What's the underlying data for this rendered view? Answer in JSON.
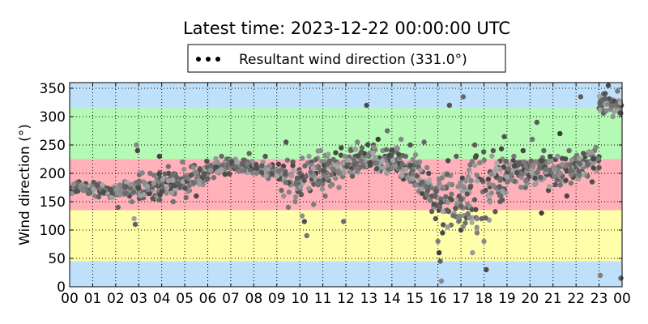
{
  "chart_data": {
    "type": "scatter",
    "title": "Latest time: 2023-12-22 00:00:00 UTC",
    "xlabel": "",
    "ylabel": "Wind direction (°)",
    "xlim": [
      0,
      24
    ],
    "ylim": [
      0,
      360
    ],
    "grid": true,
    "legend_placement": "top-center",
    "x_tick_labels": [
      "00",
      "01",
      "02",
      "03",
      "04",
      "05",
      "06",
      "07",
      "08",
      "09",
      "10",
      "11",
      "12",
      "13",
      "14",
      "15",
      "16",
      "17",
      "18",
      "19",
      "20",
      "21",
      "22",
      "23",
      "00"
    ],
    "y_ticks": [
      0,
      50,
      100,
      150,
      200,
      250,
      300,
      350
    ],
    "bands": [
      {
        "from": 0,
        "to": 45,
        "color": "#bfe0fa"
      },
      {
        "from": 45,
        "to": 135,
        "color": "#ffffaa"
      },
      {
        "from": 135,
        "to": 225,
        "color": "#ffb0b8"
      },
      {
        "from": 225,
        "to": 315,
        "color": "#b4fab4"
      },
      {
        "from": 315,
        "to": 360,
        "color": "#bfe0fa"
      }
    ],
    "series": [
      {
        "name": "Resultant wind direction (331.0°)",
        "marker_color": "#5a5a5a",
        "trend_hourly": [
          {
            "hour": 0,
            "dir": 175,
            "spread": 10
          },
          {
            "hour": 1,
            "dir": 172,
            "spread": 12
          },
          {
            "hour": 2,
            "dir": 168,
            "spread": 15
          },
          {
            "hour": 3,
            "dir": 175,
            "spread": 25
          },
          {
            "hour": 4,
            "dir": 180,
            "spread": 25
          },
          {
            "hour": 5,
            "dir": 185,
            "spread": 25
          },
          {
            "hour": 6,
            "dir": 205,
            "spread": 15
          },
          {
            "hour": 7,
            "dir": 215,
            "spread": 12
          },
          {
            "hour": 8,
            "dir": 212,
            "spread": 12
          },
          {
            "hour": 9,
            "dir": 200,
            "spread": 25
          },
          {
            "hour": 10,
            "dir": 185,
            "spread": 40
          },
          {
            "hour": 11,
            "dir": 200,
            "spread": 30
          },
          {
            "hour": 12,
            "dir": 215,
            "spread": 25
          },
          {
            "hour": 13,
            "dir": 225,
            "spread": 25
          },
          {
            "hour": 14,
            "dir": 225,
            "spread": 25
          },
          {
            "hour": 15,
            "dir": 200,
            "spread": 30
          },
          {
            "hour": 16,
            "dir": 150,
            "spread": 60
          },
          {
            "hour": 17,
            "dir": 160,
            "spread": 60
          },
          {
            "hour": 18,
            "dir": 170,
            "spread": 55
          },
          {
            "hour": 19,
            "dir": 205,
            "spread": 25
          },
          {
            "hour": 20,
            "dir": 205,
            "spread": 30
          },
          {
            "hour": 21,
            "dir": 205,
            "spread": 30
          },
          {
            "hour": 22,
            "dir": 210,
            "spread": 25
          },
          {
            "hour": 23,
            "dir": 320,
            "spread": 20
          }
        ],
        "points": [
          [
            0.1,
            172
          ],
          [
            0.2,
            180
          ],
          [
            0.3,
            168
          ],
          [
            0.4,
            185
          ],
          [
            0.5,
            176
          ],
          [
            0.6,
            170
          ],
          [
            0.7,
            182
          ],
          [
            0.8,
            165
          ],
          [
            0.9,
            178
          ],
          [
            1.0,
            174
          ],
          [
            1.1,
            160
          ],
          [
            1.2,
            180
          ],
          [
            1.3,
            170
          ],
          [
            1.4,
            168
          ],
          [
            1.5,
            176
          ],
          [
            1.6,
            165
          ],
          [
            1.7,
            172
          ],
          [
            1.8,
            158
          ],
          [
            1.9,
            175
          ],
          [
            2.0,
            170
          ],
          [
            2.1,
            140
          ],
          [
            2.2,
            178
          ],
          [
            2.3,
            165
          ],
          [
            2.4,
            185
          ],
          [
            2.5,
            172
          ],
          [
            2.6,
            160
          ],
          [
            2.7,
            150
          ],
          [
            2.8,
            120
          ],
          [
            2.85,
            110
          ],
          [
            2.9,
            250
          ],
          [
            2.95,
            240
          ],
          [
            3.0,
            175
          ],
          [
            3.2,
            185
          ],
          [
            3.4,
            165
          ],
          [
            3.5,
            200
          ],
          [
            3.6,
            170
          ],
          [
            3.7,
            155
          ],
          [
            3.8,
            190
          ],
          [
            3.9,
            230
          ],
          [
            4.0,
            180
          ],
          [
            4.2,
            165
          ],
          [
            4.3,
            200
          ],
          [
            4.5,
            150
          ],
          [
            4.6,
            195
          ],
          [
            4.8,
            175
          ],
          [
            4.9,
            220
          ],
          [
            5.0,
            185
          ],
          [
            5.2,
            170
          ],
          [
            5.4,
            200
          ],
          [
            5.5,
            160
          ],
          [
            5.6,
            195
          ],
          [
            5.8,
            180
          ],
          [
            5.9,
            210
          ],
          [
            6.0,
            200
          ],
          [
            6.1,
            215
          ],
          [
            6.2,
            205
          ],
          [
            6.4,
            220
          ],
          [
            6.5,
            210
          ],
          [
            6.6,
            230
          ],
          [
            6.8,
            215
          ],
          [
            6.9,
            200
          ],
          [
            7.0,
            215
          ],
          [
            7.2,
            225
          ],
          [
            7.4,
            205
          ],
          [
            7.5,
            218
          ],
          [
            7.6,
            210
          ],
          [
            7.8,
            235
          ],
          [
            7.9,
            220
          ],
          [
            8.0,
            212
          ],
          [
            8.2,
            205
          ],
          [
            8.4,
            220
          ],
          [
            8.5,
            230
          ],
          [
            8.6,
            208
          ],
          [
            8.8,
            215
          ],
          [
            8.9,
            200
          ],
          [
            9.0,
            205
          ],
          [
            9.1,
            190
          ],
          [
            9.2,
            170
          ],
          [
            9.3,
            160
          ],
          [
            9.4,
            255
          ],
          [
            9.5,
            140
          ],
          [
            9.6,
            185
          ],
          [
            9.7,
            220
          ],
          [
            9.8,
            150
          ],
          [
            9.9,
            180
          ],
          [
            10.0,
            170
          ],
          [
            10.1,
            125
          ],
          [
            10.2,
            115
          ],
          [
            10.3,
            90
          ],
          [
            10.4,
            230
          ],
          [
            10.5,
            210
          ],
          [
            10.6,
            145
          ],
          [
            10.7,
            200
          ],
          [
            10.8,
            180
          ],
          [
            10.9,
            240
          ],
          [
            11.0,
            205
          ],
          [
            11.1,
            160
          ],
          [
            11.2,
            230
          ],
          [
            11.3,
            215
          ],
          [
            11.4,
            180
          ],
          [
            11.5,
            200
          ],
          [
            11.6,
            220
          ],
          [
            11.7,
            175
          ],
          [
            11.8,
            245
          ],
          [
            11.9,
            115
          ],
          [
            12.0,
            215
          ],
          [
            12.1,
            225
          ],
          [
            12.2,
            240
          ],
          [
            12.3,
            200
          ],
          [
            12.4,
            230
          ],
          [
            12.5,
            255
          ],
          [
            12.6,
            210
          ],
          [
            12.7,
            245
          ],
          [
            12.8,
            220
          ],
          [
            12.9,
            320
          ],
          [
            13.0,
            230
          ],
          [
            13.1,
            215
          ],
          [
            13.2,
            250
          ],
          [
            13.3,
            225
          ],
          [
            13.4,
            260
          ],
          [
            13.5,
            205
          ],
          [
            13.6,
            240
          ],
          [
            13.7,
            230
          ],
          [
            13.8,
            275
          ],
          [
            13.9,
            215
          ],
          [
            14.0,
            235
          ],
          [
            14.1,
            220
          ],
          [
            14.2,
            245
          ],
          [
            14.3,
            210
          ],
          [
            14.4,
            260
          ],
          [
            14.5,
            190
          ],
          [
            14.6,
            230
          ],
          [
            14.7,
            215
          ],
          [
            14.8,
            250
          ],
          [
            14.9,
            205
          ],
          [
            15.0,
            210
          ],
          [
            15.1,
            195
          ],
          [
            15.2,
            220
          ],
          [
            15.3,
            180
          ],
          [
            15.4,
            255
          ],
          [
            15.5,
            165
          ],
          [
            15.6,
            200
          ],
          [
            15.7,
            175
          ],
          [
            15.8,
            140
          ],
          [
            15.9,
            120
          ],
          [
            16.0,
            80
          ],
          [
            16.05,
            60
          ],
          [
            16.1,
            45
          ],
          [
            16.15,
            10
          ],
          [
            16.2,
            95
          ],
          [
            16.3,
            150
          ],
          [
            16.4,
            200
          ],
          [
            16.5,
            320
          ],
          [
            16.6,
            180
          ],
          [
            16.7,
            130
          ],
          [
            16.8,
            230
          ],
          [
            16.9,
            115
          ],
          [
            17.0,
            100
          ],
          [
            17.1,
            335
          ],
          [
            17.2,
            170
          ],
          [
            17.3,
            140
          ],
          [
            17.4,
            215
          ],
          [
            17.5,
            60
          ],
          [
            17.6,
            250
          ],
          [
            17.7,
            95
          ],
          [
            17.8,
            190
          ],
          [
            17.9,
            120
          ],
          [
            18.0,
            80
          ],
          [
            18.1,
            30
          ],
          [
            18.2,
            160
          ],
          [
            18.3,
            200
          ],
          [
            18.4,
            240
          ],
          [
            18.5,
            175
          ],
          [
            18.6,
            210
          ],
          [
            18.7,
            150
          ],
          [
            18.8,
            225
          ],
          [
            18.9,
            190
          ],
          [
            19.0,
            205
          ],
          [
            19.1,
            215
          ],
          [
            19.2,
            195
          ],
          [
            19.3,
            230
          ],
          [
            19.4,
            185
          ],
          [
            19.5,
            215
          ],
          [
            19.6,
            200
          ],
          [
            19.7,
            240
          ],
          [
            19.8,
            175
          ],
          [
            19.9,
            210
          ],
          [
            20.0,
            195
          ],
          [
            20.1,
            260
          ],
          [
            20.2,
            180
          ],
          [
            20.3,
            290
          ],
          [
            20.4,
            215
          ],
          [
            20.5,
            130
          ],
          [
            20.6,
            240
          ],
          [
            20.7,
            200
          ],
          [
            20.8,
            170
          ],
          [
            20.9,
            225
          ],
          [
            21.0,
            210
          ],
          [
            21.1,
            180
          ],
          [
            21.2,
            230
          ],
          [
            21.3,
            270
          ],
          [
            21.4,
            195
          ],
          [
            21.5,
            215
          ],
          [
            21.6,
            160
          ],
          [
            21.7,
            240
          ],
          [
            21.8,
            205
          ],
          [
            21.9,
            225
          ],
          [
            22.0,
            215
          ],
          [
            22.1,
            190
          ],
          [
            22.2,
            335
          ],
          [
            22.3,
            210
          ],
          [
            22.4,
            230
          ],
          [
            22.5,
            195
          ],
          [
            22.6,
            220
          ],
          [
            22.7,
            185
          ],
          [
            22.8,
            240
          ],
          [
            22.9,
            205
          ],
          [
            23.0,
            210
          ],
          [
            23.05,
            20
          ],
          [
            23.1,
            320
          ],
          [
            23.2,
            340
          ],
          [
            23.3,
            310
          ],
          [
            23.4,
            355
          ],
          [
            23.5,
            330
          ],
          [
            23.6,
            300
          ],
          [
            23.7,
            325
          ],
          [
            23.8,
            345
          ],
          [
            23.9,
            315
          ],
          [
            23.95,
            15
          ]
        ]
      }
    ]
  }
}
